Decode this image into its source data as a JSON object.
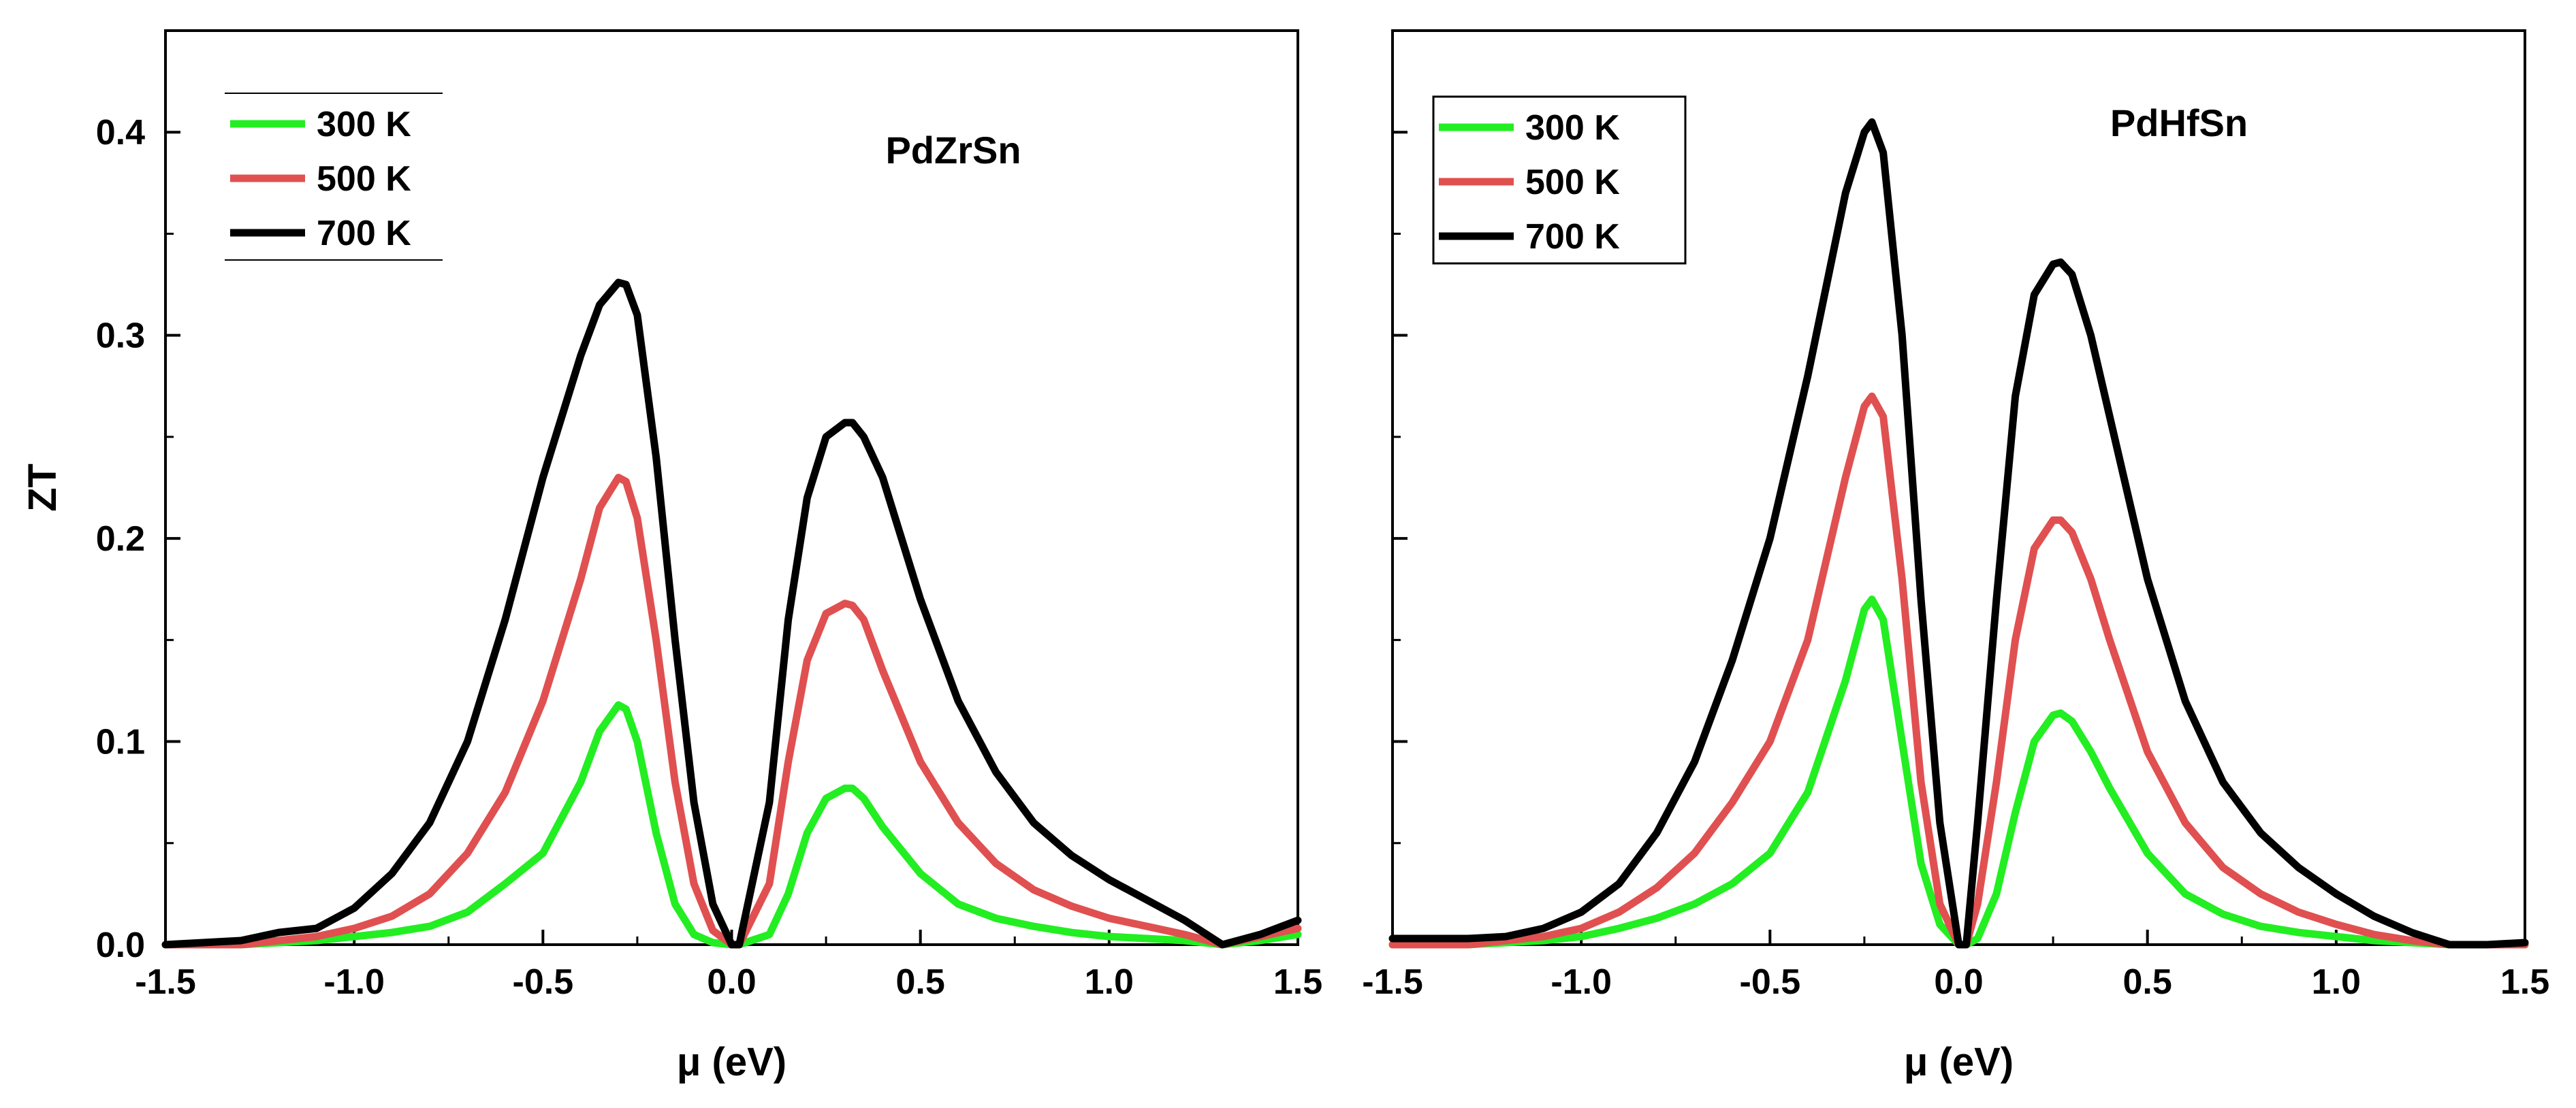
{
  "chart_data": [
    {
      "type": "line",
      "title": "PdZrSn",
      "xlabel": "μ (eV)",
      "ylabel": "ZT",
      "xlim": [
        -1.5,
        1.5
      ],
      "ylim": [
        0,
        0.45
      ],
      "xticks": [
        -1.5,
        -1.0,
        -0.5,
        0.0,
        0.5,
        1.0,
        1.5
      ],
      "xtick_labels": [
        "-1.5",
        "-1.0",
        "-0.5",
        "0.0",
        "0.5",
        "1.0",
        "1.5"
      ],
      "yticks": [
        0.0,
        0.1,
        0.2,
        0.3,
        0.4
      ],
      "ytick_labels": [
        "0.0",
        "0.1",
        "0.2",
        "0.3",
        "0.4"
      ],
      "legend_position": "top-left",
      "x": [
        -1.5,
        -1.3,
        -1.2,
        -1.1,
        -1.0,
        -0.9,
        -0.8,
        -0.7,
        -0.6,
        -0.5,
        -0.4,
        -0.35,
        -0.3,
        -0.28,
        -0.25,
        -0.2,
        -0.15,
        -0.1,
        -0.05,
        0.0,
        0.02,
        0.1,
        0.15,
        0.2,
        0.25,
        0.3,
        0.32,
        0.35,
        0.4,
        0.5,
        0.6,
        0.7,
        0.8,
        0.9,
        1.0,
        1.1,
        1.2,
        1.3,
        1.4,
        1.5
      ],
      "series": [
        {
          "name": "300 K",
          "color": "#22ee22",
          "values": [
            0.0,
            0.0,
            0.001,
            0.002,
            0.004,
            0.006,
            0.009,
            0.016,
            0.03,
            0.045,
            0.08,
            0.105,
            0.118,
            0.116,
            0.1,
            0.055,
            0.02,
            0.005,
            0.001,
            0.0,
            0.0,
            0.005,
            0.025,
            0.055,
            0.072,
            0.077,
            0.077,
            0.072,
            0.058,
            0.035,
            0.02,
            0.013,
            0.009,
            0.006,
            0.004,
            0.003,
            0.002,
            0.0,
            0.002,
            0.005
          ]
        },
        {
          "name": "500 K",
          "color": "#e05050",
          "values": [
            0.0,
            0.0,
            0.002,
            0.004,
            0.008,
            0.014,
            0.025,
            0.045,
            0.075,
            0.12,
            0.18,
            0.215,
            0.23,
            0.228,
            0.21,
            0.15,
            0.08,
            0.03,
            0.007,
            0.0,
            0.0,
            0.03,
            0.09,
            0.14,
            0.163,
            0.168,
            0.167,
            0.16,
            0.135,
            0.09,
            0.06,
            0.04,
            0.027,
            0.019,
            0.013,
            0.009,
            0.005,
            0.0,
            0.004,
            0.008
          ]
        },
        {
          "name": "700 K",
          "color": "#000000",
          "values": [
            0.0,
            0.002,
            0.006,
            0.008,
            0.018,
            0.035,
            0.06,
            0.1,
            0.16,
            0.23,
            0.29,
            0.315,
            0.326,
            0.325,
            0.31,
            0.24,
            0.15,
            0.07,
            0.02,
            0.0,
            0.0,
            0.07,
            0.16,
            0.22,
            0.25,
            0.257,
            0.257,
            0.25,
            0.23,
            0.17,
            0.12,
            0.085,
            0.06,
            0.044,
            0.032,
            0.022,
            0.012,
            0.0,
            0.005,
            0.012
          ]
        }
      ]
    },
    {
      "type": "line",
      "title": "PdHfSn",
      "xlabel": "μ (eV)",
      "ylabel": "",
      "xlim": [
        -1.5,
        1.5
      ],
      "ylim": [
        0,
        0.45
      ],
      "xticks": [
        -1.5,
        -1.0,
        -0.5,
        0.0,
        0.5,
        1.0,
        1.5
      ],
      "xtick_labels": [
        "-1.5",
        "-1.0",
        "-0.5",
        "0.0",
        "0.5",
        "1.0",
        "1.5"
      ],
      "yticks": [
        0.0,
        0.1,
        0.2,
        0.3,
        0.4
      ],
      "ytick_labels": [
        "",
        "",
        "",
        "",
        ""
      ],
      "legend_position": "top-left",
      "x": [
        -1.5,
        -1.3,
        -1.2,
        -1.1,
        -1.0,
        -0.9,
        -0.8,
        -0.7,
        -0.6,
        -0.5,
        -0.4,
        -0.3,
        -0.25,
        -0.23,
        -0.2,
        -0.15,
        -0.1,
        -0.05,
        0.0,
        0.02,
        0.05,
        0.1,
        0.15,
        0.2,
        0.25,
        0.27,
        0.3,
        0.35,
        0.4,
        0.5,
        0.6,
        0.7,
        0.8,
        0.9,
        1.0,
        1.1,
        1.2,
        1.3,
        1.4,
        1.5
      ],
      "series": [
        {
          "name": "300 K",
          "color": "#22ee22",
          "values": [
            0.0,
            0.0,
            0.001,
            0.002,
            0.004,
            0.008,
            0.013,
            0.02,
            0.03,
            0.045,
            0.075,
            0.13,
            0.165,
            0.17,
            0.16,
            0.1,
            0.04,
            0.01,
            0.0,
            0.0,
            0.003,
            0.025,
            0.065,
            0.1,
            0.113,
            0.114,
            0.11,
            0.095,
            0.077,
            0.045,
            0.025,
            0.015,
            0.009,
            0.006,
            0.004,
            0.002,
            0.001,
            0.0,
            0.0,
            0.0
          ]
        },
        {
          "name": "500 K",
          "color": "#e05050",
          "values": [
            0.0,
            0.0,
            0.002,
            0.004,
            0.008,
            0.016,
            0.028,
            0.045,
            0.07,
            0.1,
            0.15,
            0.23,
            0.265,
            0.27,
            0.26,
            0.18,
            0.08,
            0.02,
            0.0,
            0.0,
            0.02,
            0.08,
            0.15,
            0.195,
            0.209,
            0.209,
            0.203,
            0.18,
            0.15,
            0.095,
            0.06,
            0.038,
            0.025,
            0.016,
            0.01,
            0.005,
            0.002,
            0.0,
            0.0,
            0.0
          ]
        },
        {
          "name": "700 K",
          "color": "#000000",
          "values": [
            0.003,
            0.003,
            0.004,
            0.008,
            0.016,
            0.03,
            0.055,
            0.09,
            0.14,
            0.2,
            0.28,
            0.37,
            0.4,
            0.405,
            0.39,
            0.3,
            0.17,
            0.06,
            0.0,
            0.0,
            0.06,
            0.17,
            0.27,
            0.32,
            0.335,
            0.336,
            0.33,
            0.3,
            0.26,
            0.18,
            0.12,
            0.08,
            0.055,
            0.038,
            0.025,
            0.014,
            0.006,
            0.0,
            0.0,
            0.001
          ]
        }
      ]
    }
  ]
}
